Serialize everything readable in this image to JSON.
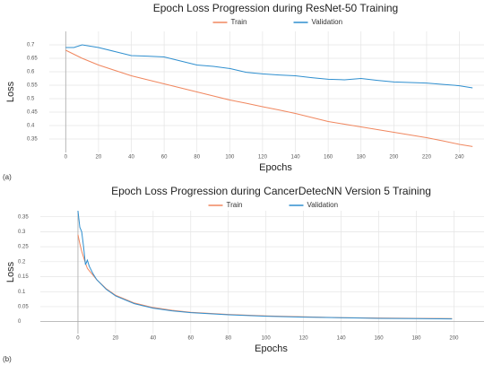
{
  "chart_data": [
    {
      "type": "line",
      "panel_label": "(a)",
      "title": "Epoch Loss Progression during ResNet-50 Training",
      "xlabel": "Epochs",
      "ylabel": "Loss",
      "x": [
        0,
        5,
        10,
        20,
        30,
        40,
        50,
        60,
        70,
        80,
        90,
        100,
        110,
        120,
        130,
        140,
        150,
        160,
        170,
        180,
        190,
        200,
        210,
        220,
        230,
        240,
        248
      ],
      "series": [
        {
          "name": "Train",
          "color": "#f0875f",
          "values": [
            0.68,
            0.665,
            0.65,
            0.625,
            0.605,
            0.585,
            0.57,
            0.555,
            0.54,
            0.525,
            0.51,
            0.495,
            0.483,
            0.47,
            0.458,
            0.445,
            0.43,
            0.415,
            0.405,
            0.395,
            0.385,
            0.375,
            0.365,
            0.355,
            0.343,
            0.33,
            0.322
          ]
        },
        {
          "name": "Validation",
          "color": "#2f8fcf",
          "values": [
            0.69,
            0.69,
            0.7,
            0.69,
            0.675,
            0.66,
            0.658,
            0.655,
            0.64,
            0.625,
            0.62,
            0.612,
            0.598,
            0.592,
            0.588,
            0.585,
            0.578,
            0.572,
            0.57,
            0.575,
            0.568,
            0.562,
            0.56,
            0.558,
            0.553,
            0.548,
            0.54
          ]
        }
      ],
      "xlim": [
        -10,
        255
      ],
      "xticks": [
        0,
        20,
        40,
        60,
        80,
        100,
        120,
        140,
        160,
        180,
        200,
        220,
        240
      ],
      "ylim": [
        0.3,
        0.75
      ],
      "yticks": [
        0.35,
        0.4,
        0.45,
        0.5,
        0.55,
        0.6,
        0.65,
        0.7
      ],
      "grid": true,
      "legend": "top"
    },
    {
      "type": "line",
      "panel_label": "(b)",
      "title": "Epoch Loss Progression during CancerDetecNN Version 5 Training",
      "xlabel": "Epochs",
      "ylabel": "Loss",
      "x": [
        0,
        1,
        2,
        3,
        4,
        5,
        6,
        8,
        10,
        15,
        20,
        30,
        40,
        50,
        60,
        80,
        100,
        120,
        140,
        160,
        180,
        199
      ],
      "series": [
        {
          "name": "Train",
          "color": "#f0875f",
          "values": [
            0.29,
            0.26,
            0.235,
            0.215,
            0.195,
            0.178,
            0.17,
            0.155,
            0.14,
            0.11,
            0.088,
            0.062,
            0.047,
            0.038,
            0.031,
            0.024,
            0.019,
            0.016,
            0.013,
            0.012,
            0.011,
            0.01
          ]
        },
        {
          "name": "Validation",
          "color": "#2f8fcf",
          "values": [
            0.37,
            0.315,
            0.3,
            0.25,
            0.19,
            0.205,
            0.185,
            0.16,
            0.14,
            0.108,
            0.086,
            0.06,
            0.045,
            0.036,
            0.03,
            0.023,
            0.018,
            0.015,
            0.013,
            0.011,
            0.01,
            0.009
          ]
        }
      ],
      "xlim": [
        -20,
        216
      ],
      "xticks": [
        0,
        20,
        40,
        60,
        80,
        100,
        120,
        140,
        160,
        180,
        200
      ],
      "ylim": [
        -0.04,
        0.37
      ],
      "yticks": [
        0,
        0.05,
        0.1,
        0.15,
        0.2,
        0.25,
        0.3,
        0.35
      ],
      "grid": true,
      "legend": "top"
    }
  ]
}
